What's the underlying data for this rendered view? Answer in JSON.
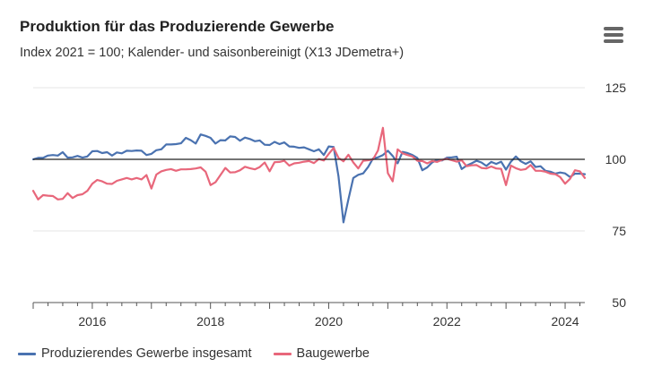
{
  "header": {
    "title": "Produktion für das Produzierende Gewerbe",
    "subtitle": "Index 2021 = 100; Kalender- und saisonbereinigt (X13 JDemetra+)",
    "menu_icon": "hamburger-menu-icon"
  },
  "colors": {
    "series_1": "#4a72b0",
    "series_2": "#e8677b",
    "reference_line": "#222222",
    "grid": "#e6e6e6",
    "axis": "#555555"
  },
  "chart_data": {
    "type": "line",
    "title": "Produktion für das Produzierende Gewerbe",
    "subtitle": "Index 2021 = 100; Kalender- und saisonbereinigt (X13 JDemetra+)",
    "xlabel": "",
    "ylabel": "",
    "x_start": "2015-01",
    "x_end": "2024-05",
    "xticks": [
      2016,
      2018,
      2020,
      2022,
      2024
    ],
    "xtick_labels": [
      "2016",
      "2018",
      "2020",
      "2022",
      "2024"
    ],
    "ylim": [
      50,
      125
    ],
    "yticks": [
      50,
      75,
      100,
      125
    ],
    "ytick_labels": [
      "50",
      "75",
      "100",
      "125"
    ],
    "y_axis_side": "right",
    "reference_line": 100,
    "grid": true,
    "legend_position": "bottom",
    "series": [
      {
        "name": "Produzierendes Gewerbe insgesamt",
        "color": "#4a72b0",
        "values": [
          100.0,
          100.5,
          100.5,
          101.3,
          101.5,
          101.3,
          102.5,
          100.6,
          100.7,
          101.2,
          100.6,
          101.0,
          102.8,
          102.9,
          102.2,
          102.5,
          101.3,
          102.4,
          102.1,
          103.0,
          102.9,
          103.1,
          103.0,
          101.5,
          101.9,
          103.2,
          103.5,
          105.2,
          105.2,
          105.3,
          105.6,
          107.5,
          106.7,
          105.5,
          108.7,
          108.2,
          107.5,
          105.5,
          106.7,
          106.6,
          108.0,
          107.8,
          106.5,
          107.6,
          107.1,
          106.3,
          106.6,
          105.1,
          105.0,
          106.1,
          105.3,
          105.9,
          104.5,
          104.4,
          104.0,
          104.2,
          103.5,
          102.8,
          103.5,
          101.5,
          104.5,
          104.3,
          94.0,
          78.0,
          86.0,
          93.5,
          94.6,
          95.1,
          97.3,
          100.3,
          100.7,
          101.5,
          103.0,
          101.2,
          98.6,
          102.6,
          102.2,
          101.5,
          100.5,
          96.2,
          97.2,
          98.9,
          99.8,
          99.6,
          100.6,
          100.7,
          100.9,
          96.6,
          97.8,
          98.6,
          99.5,
          98.9,
          97.7,
          99.1,
          98.4,
          99.2,
          96.4,
          99.2,
          101.0,
          99.3,
          98.4,
          99.3,
          97.3,
          97.6,
          96.0,
          95.7,
          95.0,
          95.4,
          95.1,
          93.8,
          95.0,
          95.0,
          94.8
        ]
      },
      {
        "name": "Baugewerbe",
        "color": "#e8677b",
        "values": [
          89.0,
          86.0,
          87.5,
          87.3,
          87.2,
          86.0,
          86.2,
          88.2,
          86.5,
          87.5,
          87.8,
          89.0,
          91.5,
          92.8,
          92.3,
          91.5,
          91.4,
          92.5,
          93.0,
          93.5,
          93.0,
          93.5,
          93.0,
          94.5,
          89.8,
          94.7,
          95.8,
          96.3,
          96.6,
          96.0,
          96.5,
          96.5,
          96.6,
          96.8,
          97.2,
          95.7,
          91.0,
          92.0,
          94.5,
          97.0,
          95.4,
          95.5,
          96.2,
          97.4,
          96.9,
          96.5,
          97.3,
          98.9,
          95.8,
          99.0,
          99.1,
          99.5,
          97.8,
          98.6,
          98.8,
          99.2,
          99.4,
          98.7,
          100.1,
          99.6,
          101.9,
          104.0,
          100.5,
          99.3,
          101.6,
          98.9,
          96.8,
          99.5,
          99.7,
          100.0,
          103.1,
          111.0,
          95.2,
          92.3,
          103.5,
          102.1,
          101.5,
          101.0,
          99.5,
          99.4,
          98.6,
          99.4,
          99.1,
          99.8,
          100.2,
          99.7,
          99.2,
          99.7,
          97.6,
          97.9,
          98.0,
          97.0,
          96.8,
          97.5,
          96.8,
          96.7,
          91.0,
          97.8,
          96.9,
          96.3,
          96.6,
          98.0,
          96.0,
          96.0,
          95.7,
          95.0,
          94.8,
          93.8,
          91.5,
          93.2,
          96.2,
          95.8,
          93.5
        ]
      }
    ]
  }
}
